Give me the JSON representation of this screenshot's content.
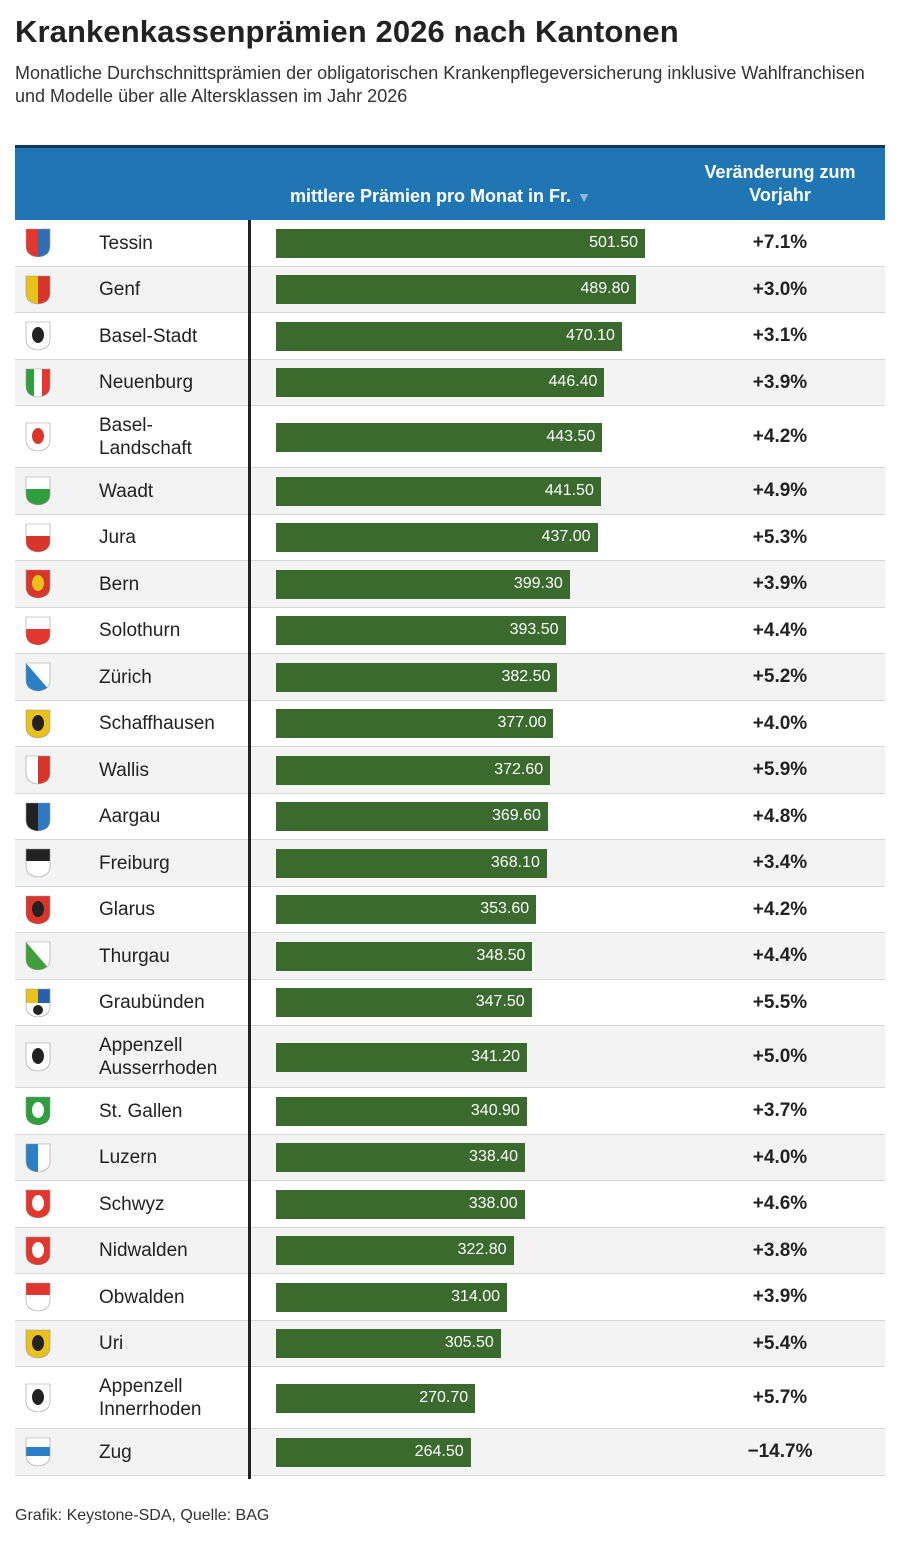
{
  "title": "Krankenkassenprämien 2026 nach Kantonen",
  "subtitle": "Monatliche Durchschnittsprämien der obligatorischen Krankenpflegeversicherung inklusive Wahlfranchisen und Modelle über alle Altersklassen im Jahr 2026",
  "header": {
    "premium": "mittlere Prämien pro Monat in Fr.",
    "sort_icon": "▼",
    "change_line1": "Veränderung zum",
    "change_line2": "Vorjahr"
  },
  "footer": "Grafik: Keystone-SDA, Quelle: BAG",
  "colors": {
    "header": "#2076b3",
    "bar": "#3b6a2f",
    "alt_row": "#f3f3f3"
  },
  "chart_data": {
    "type": "bar",
    "orientation": "horizontal",
    "categories": [
      "Tessin",
      "Genf",
      "Basel-Stadt",
      "Neuenburg",
      "Basel-Landschaft",
      "Waadt",
      "Jura",
      "Bern",
      "Solothurn",
      "Zürich",
      "Schaffhausen",
      "Wallis",
      "Aargau",
      "Freiburg",
      "Glarus",
      "Thurgau",
      "Graubünden",
      "Appenzell Ausserrhoden",
      "St. Gallen",
      "Luzern",
      "Schwyz",
      "Nidwalden",
      "Obwalden",
      "Uri",
      "Appenzell Innerrhoden",
      "Zug"
    ],
    "values": [
      501.5,
      489.8,
      470.1,
      446.4,
      443.5,
      441.5,
      437.0,
      399.3,
      393.5,
      382.5,
      377.0,
      372.6,
      369.6,
      368.1,
      353.6,
      348.5,
      347.5,
      341.2,
      340.9,
      338.4,
      338.0,
      322.8,
      314.0,
      305.5,
      270.7,
      264.5
    ],
    "labels": [
      "501.50",
      "489.80",
      "470.10",
      "446.40",
      "443.50",
      "441.50",
      "437.00",
      "399.30",
      "393.50",
      "382.50",
      "377.00",
      "372.60",
      "369.60",
      "368.10",
      "353.60",
      "348.50",
      "347.50",
      "341.20",
      "340.90",
      "338.40",
      "338.00",
      "322.80",
      "314.00",
      "305.50",
      "270.70",
      "264.50"
    ],
    "changes": [
      "+7.1%",
      "+3.0%",
      "+3.1%",
      "+3.9%",
      "+4.2%",
      "+4.9%",
      "+5.3%",
      "+3.9%",
      "+4.4%",
      "+5.2%",
      "+4.0%",
      "+5.9%",
      "+4.8%",
      "+3.4%",
      "+4.2%",
      "+4.4%",
      "+5.5%",
      "+5.0%",
      "+3.7%",
      "+4.0%",
      "+4.6%",
      "+3.8%",
      "+3.9%",
      "+5.4%",
      "+5.7%",
      "−14.7%"
    ],
    "name_lines": [
      [
        "Tessin"
      ],
      [
        "Genf"
      ],
      [
        "Basel-Stadt"
      ],
      [
        "Neuenburg"
      ],
      [
        "Basel-",
        "Landschaft"
      ],
      [
        "Waadt"
      ],
      [
        "Jura"
      ],
      [
        "Bern"
      ],
      [
        "Solothurn"
      ],
      [
        "Zürich"
      ],
      [
        "Schaffhausen"
      ],
      [
        "Wallis"
      ],
      [
        "Aargau"
      ],
      [
        "Freiburg"
      ],
      [
        "Glarus"
      ],
      [
        "Thurgau"
      ],
      [
        "Graubünden"
      ],
      [
        "Appenzell",
        "Ausserrhoden"
      ],
      [
        "St. Gallen"
      ],
      [
        "Luzern"
      ],
      [
        "Schwyz"
      ],
      [
        "Nidwalden"
      ],
      [
        "Obwalden"
      ],
      [
        "Uri"
      ],
      [
        "Appenzell",
        "Innerrhoden"
      ],
      [
        "Zug"
      ]
    ],
    "flags": [
      {
        "icon": "tessin-flag-icon",
        "style": "v",
        "colors": [
          "#e2372f",
          "#2f6db5"
        ]
      },
      {
        "icon": "genf-flag-icon",
        "style": "v",
        "colors": [
          "#e8c21a",
          "#d8362a"
        ]
      },
      {
        "icon": "basel-stadt-flag-icon",
        "style": "s",
        "colors": [
          "#ffffff",
          "#222222"
        ]
      },
      {
        "icon": "neuenburg-flag-icon",
        "style": "t",
        "colors": [
          "#2e9e3e",
          "#ffffff",
          "#e2372f"
        ]
      },
      {
        "icon": "basel-landschaft-flag-icon",
        "style": "s",
        "colors": [
          "#ffffff",
          "#d8362a"
        ]
      },
      {
        "icon": "waadt-flag-icon",
        "style": "h",
        "colors": [
          "#ffffff",
          "#2e9e3e"
        ]
      },
      {
        "icon": "jura-flag-icon",
        "style": "h",
        "colors": [
          "#ffffff",
          "#d8362a"
        ]
      },
      {
        "icon": "bern-flag-icon",
        "style": "s",
        "colors": [
          "#d8362a",
          "#e8c21a"
        ]
      },
      {
        "icon": "solothurn-flag-icon",
        "style": "h",
        "colors": [
          "#ffffff",
          "#e2372f"
        ]
      },
      {
        "icon": "zuerich-flag-icon",
        "style": "d",
        "colors": [
          "#ffffff",
          "#2a7fc6"
        ]
      },
      {
        "icon": "schaffhausen-flag-icon",
        "style": "s",
        "colors": [
          "#e8c21a",
          "#222222"
        ]
      },
      {
        "icon": "wallis-flag-icon",
        "style": "v",
        "colors": [
          "#ffffff",
          "#d8362a"
        ]
      },
      {
        "icon": "aargau-flag-icon",
        "style": "v",
        "colors": [
          "#222222",
          "#2f78c6"
        ]
      },
      {
        "icon": "freiburg-flag-icon",
        "style": "h",
        "colors": [
          "#222222",
          "#ffffff"
        ]
      },
      {
        "icon": "glarus-flag-icon",
        "style": "s",
        "colors": [
          "#d8362a",
          "#222222"
        ]
      },
      {
        "icon": "thurgau-flag-icon",
        "style": "d",
        "colors": [
          "#ffffff",
          "#3f9e3a"
        ]
      },
      {
        "icon": "graubuenden-flag-icon",
        "style": "q",
        "colors": [
          "#e8c21a",
          "#2a5fae"
        ]
      },
      {
        "icon": "appenzell-ausserrhoden-flag-icon",
        "style": "s",
        "colors": [
          "#ffffff",
          "#222222"
        ]
      },
      {
        "icon": "st-gallen-flag-icon",
        "style": "s",
        "colors": [
          "#2e9e3e",
          "#ffffff"
        ]
      },
      {
        "icon": "luzern-flag-icon",
        "style": "v",
        "colors": [
          "#2a7fc6",
          "#ffffff"
        ]
      },
      {
        "icon": "schwyz-flag-icon",
        "style": "s",
        "colors": [
          "#e2372f",
          "#ffffff"
        ]
      },
      {
        "icon": "nidwalden-flag-icon",
        "style": "s",
        "colors": [
          "#e2372f",
          "#ffffff"
        ]
      },
      {
        "icon": "obwalden-flag-icon",
        "style": "h",
        "colors": [
          "#e2372f",
          "#ffffff"
        ]
      },
      {
        "icon": "uri-flag-icon",
        "style": "s",
        "colors": [
          "#e8c21a",
          "#222222"
        ]
      },
      {
        "icon": "appenzell-innerrhoden-flag-icon",
        "style": "s",
        "colors": [
          "#ffffff",
          "#222222"
        ]
      },
      {
        "icon": "zug-flag-icon",
        "style": "c",
        "colors": [
          "#ffffff",
          "#2a7fc6"
        ]
      }
    ],
    "value_axis": {
      "min": 0,
      "max": 501.5
    },
    "sort": "descending",
    "grid": false,
    "legend": "none"
  }
}
